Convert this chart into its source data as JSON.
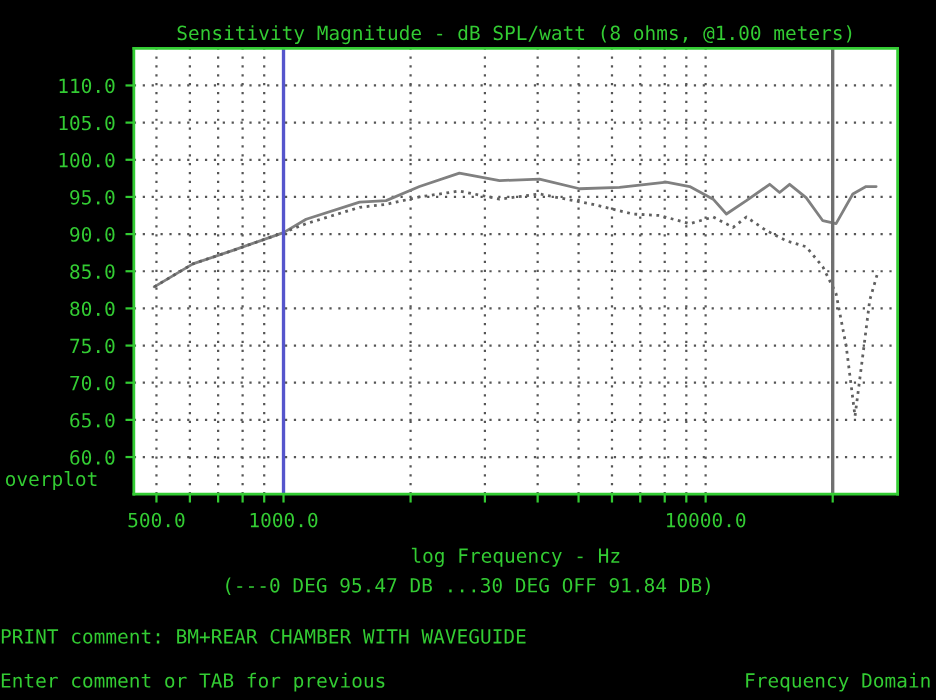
{
  "chart_data": {
    "type": "line",
    "title": "Sensitivity Magnitude - dB SPL/watt (8 ohms, @1.00 meters)",
    "xlabel": "log Frequency - Hz",
    "log": "x",
    "xlim": [
      442,
      28500
    ],
    "ylim": [
      55,
      115
    ],
    "xticks": [
      {
        "value": 500,
        "label": "500.0"
      },
      {
        "value": 600,
        "label": null
      },
      {
        "value": 700,
        "label": null
      },
      {
        "value": 800,
        "label": null
      },
      {
        "value": 900,
        "label": null
      },
      {
        "value": 1000,
        "label": "1000.0"
      },
      {
        "value": 2000,
        "label": null
      },
      {
        "value": 3000,
        "label": null
      },
      {
        "value": 4000,
        "label": null
      },
      {
        "value": 5000,
        "label": null
      },
      {
        "value": 6000,
        "label": null
      },
      {
        "value": 7000,
        "label": null
      },
      {
        "value": 8000,
        "label": null
      },
      {
        "value": 9000,
        "label": null
      },
      {
        "value": 10000,
        "label": "10000.0"
      },
      {
        "value": 20000,
        "label": null
      }
    ],
    "yticks": [
      {
        "value": 60,
        "label": "60.0"
      },
      {
        "value": 65,
        "label": "65.0"
      },
      {
        "value": 70,
        "label": "70.0"
      },
      {
        "value": 75,
        "label": "75.0"
      },
      {
        "value": 80,
        "label": "80.0"
      },
      {
        "value": 85,
        "label": "85.0"
      },
      {
        "value": 90,
        "label": "90.0"
      },
      {
        "value": 95,
        "label": "95.0"
      },
      {
        "value": 100,
        "label": "100.0"
      },
      {
        "value": 105,
        "label": "105.0"
      },
      {
        "value": 110,
        "label": "110.0"
      }
    ],
    "grid": true,
    "legend": false,
    "marker": "none",
    "series": [
      {
        "color": "#808080",
        "line_style": "solid",
        "x": [
          494,
          610,
          759,
          1000,
          1131,
          1514,
          1750,
          2100,
          2610,
          3250,
          4040,
          5030,
          6250,
          8070,
          9170,
          10420,
          11200,
          12490,
          14180,
          14970,
          15810,
          17300,
          18950,
          20370,
          22320,
          23990,
          25350
        ],
        "values": [
          82.9,
          86.0,
          87.8,
          90.2,
          92.0,
          94.3,
          94.5,
          96.4,
          98.2,
          97.2,
          97.4,
          96.1,
          96.3,
          97.0,
          96.4,
          94.7,
          92.7,
          94.5,
          96.7,
          95.6,
          96.7,
          94.9,
          91.8,
          91.4,
          95.4,
          96.4,
          96.4
        ]
      },
      {
        "color": "#606060",
        "line_style": "dotted",
        "x": [
          494,
          610,
          759,
          1000,
          1131,
          1514,
          1750,
          2100,
          2610,
          3250,
          4040,
          5410,
          6730,
          7780,
          9170,
          10420,
          11620,
          12490,
          13900,
          15520,
          17300,
          18950,
          20370,
          21530,
          22590,
          23610,
          24480,
          25650
        ],
        "values": [
          82.9,
          86.0,
          87.8,
          90.2,
          91.4,
          93.6,
          94.0,
          95.0,
          95.8,
          94.7,
          95.4,
          94.0,
          92.7,
          92.5,
          91.4,
          92.3,
          90.9,
          92.3,
          90.5,
          89.1,
          88.3,
          85.6,
          82.0,
          74.9,
          65.5,
          74.0,
          81.1,
          85.1
        ]
      }
    ],
    "ref_lines": [
      {
        "axis": "x",
        "value": 1000,
        "color": "#5555cc"
      },
      {
        "axis": "x",
        "value": 20000,
        "color": "#707070"
      }
    ],
    "annotations": [
      "overplot",
      "(---0 DEG 95.47 DB ...30 DEG OFF 91.84 DB)",
      "PRINT comment: BM+REAR CHAMBER WITH WAVEGUIDE",
      "Enter comment or TAB for previous",
      "Frequency Domain"
    ]
  }
}
